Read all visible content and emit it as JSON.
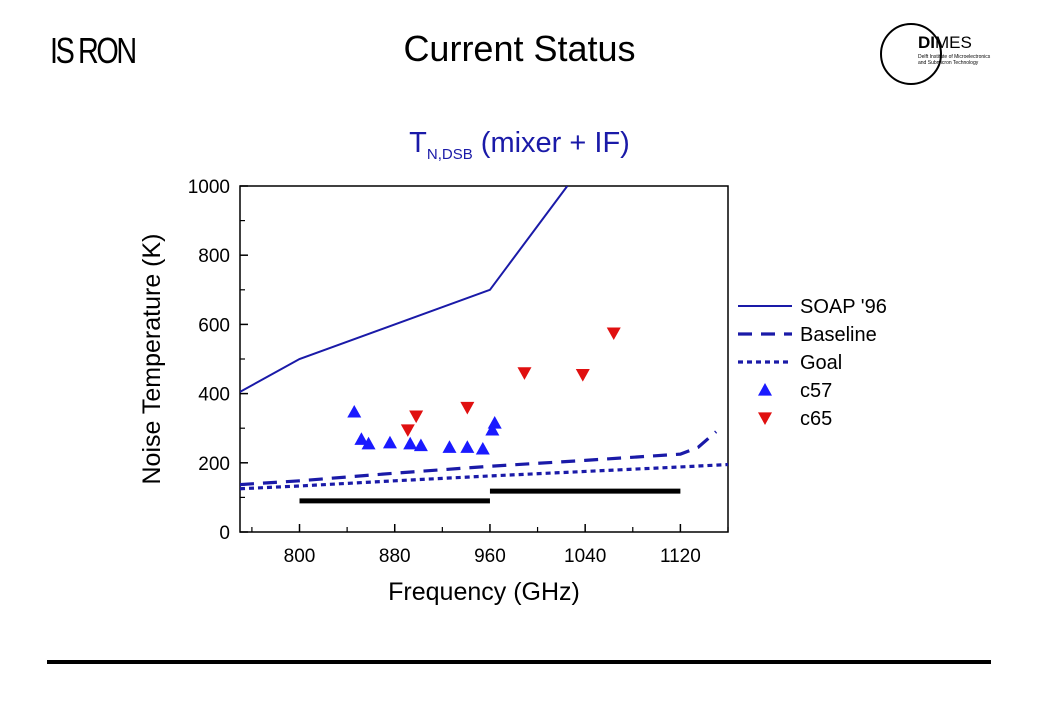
{
  "header": {
    "logo_left_text": "IS RON",
    "title": "Current Status",
    "logo_right": {
      "brand_bold": "DI",
      "brand_rest": "MES",
      "sub_line1": "Delft Institute of Microelectronics",
      "sub_line2": "and Submicron Technology"
    }
  },
  "chart_title": {
    "main": "T",
    "sub": "N,DSB",
    "rest": " (mixer + IF)"
  },
  "chart_data": {
    "type": "line",
    "xlabel": "Frequency (GHz)",
    "ylabel": "Noise Temperature (K)",
    "xlim": [
      750,
      1160
    ],
    "ylim": [
      0,
      1000
    ],
    "xticks": [
      800,
      880,
      960,
      1040,
      1120
    ],
    "yticks": [
      0,
      200,
      400,
      600,
      800,
      1000
    ],
    "grid": false,
    "legend_position": "right",
    "series": [
      {
        "name": "SOAP '96",
        "style": "solid",
        "color": "#1a1aa8",
        "x": [
          750,
          800,
          960,
          1025
        ],
        "y": [
          405,
          500,
          700,
          1000
        ]
      },
      {
        "name": "Baseline",
        "style": "dashed",
        "color": "#1a1aa8",
        "x": [
          750,
          800,
          880,
          960,
          1040,
          1120,
          1135,
          1150
        ],
        "y": [
          137,
          148,
          170,
          190,
          207,
          225,
          245,
          290
        ]
      },
      {
        "name": "Goal",
        "style": "dotted",
        "color": "#1a1aa8",
        "x": [
          750,
          800,
          880,
          960,
          1040,
          1120,
          1160
        ],
        "y": [
          125,
          133,
          148,
          162,
          175,
          188,
          195
        ]
      },
      {
        "name": "c57",
        "style": "marker-up",
        "color": "#1a1aff",
        "x": [
          846,
          852,
          858,
          876,
          893,
          902,
          926,
          941,
          954,
          962,
          964
        ],
        "y": [
          347,
          268,
          255,
          258,
          255,
          250,
          245,
          245,
          240,
          295,
          315
        ]
      },
      {
        "name": "c65",
        "style": "marker-down",
        "color": "#e01010",
        "x": [
          891,
          898,
          941,
          989,
          1038,
          1064
        ],
        "y": [
          295,
          335,
          360,
          460,
          455,
          575
        ]
      }
    ],
    "bands": [
      {
        "x": [
          800,
          960
        ],
        "y": 90,
        "color": "#000000"
      },
      {
        "x": [
          960,
          1120
        ],
        "y": 118,
        "color": "#000000"
      }
    ]
  },
  "footer": {}
}
